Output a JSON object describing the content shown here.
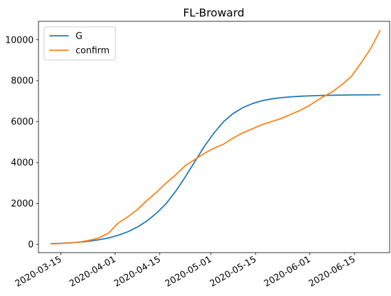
{
  "chart_data": {
    "type": "line",
    "title": "FL-Broward",
    "xlabel": "",
    "ylabel": "",
    "x_axis_type": "date",
    "xlim": [
      "2020-03-08",
      "2020-06-26"
    ],
    "ylim": [
      -400,
      10900
    ],
    "xticks": [
      "2020-03-15",
      "2020-04-01",
      "2020-04-15",
      "2020-05-01",
      "2020-05-15",
      "2020-06-01",
      "2020-06-15"
    ],
    "yticks": [
      0,
      2000,
      4000,
      6000,
      8000,
      10000
    ],
    "grid": false,
    "legend_position": "upper-left",
    "series": [
      {
        "name": "G",
        "color": "#1f77b4",
        "points": [
          [
            "2020-03-12",
            40
          ],
          [
            "2020-03-15",
            55
          ],
          [
            "2020-03-18",
            80
          ],
          [
            "2020-03-21",
            115
          ],
          [
            "2020-03-24",
            160
          ],
          [
            "2020-03-27",
            230
          ],
          [
            "2020-03-30",
            320
          ],
          [
            "2020-04-02",
            450
          ],
          [
            "2020-04-05",
            620
          ],
          [
            "2020-04-08",
            850
          ],
          [
            "2020-04-11",
            1150
          ],
          [
            "2020-04-14",
            1530
          ],
          [
            "2020-04-17",
            2000
          ],
          [
            "2020-04-20",
            2600
          ],
          [
            "2020-04-23",
            3300
          ],
          [
            "2020-04-26",
            4050
          ],
          [
            "2020-04-29",
            4800
          ],
          [
            "2020-05-02",
            5450
          ],
          [
            "2020-05-05",
            6000
          ],
          [
            "2020-05-08",
            6400
          ],
          [
            "2020-05-11",
            6680
          ],
          [
            "2020-05-14",
            6880
          ],
          [
            "2020-05-17",
            7020
          ],
          [
            "2020-05-20",
            7110
          ],
          [
            "2020-05-23",
            7170
          ],
          [
            "2020-05-26",
            7210
          ],
          [
            "2020-05-29",
            7240
          ],
          [
            "2020-06-01",
            7260
          ],
          [
            "2020-06-05",
            7280
          ],
          [
            "2020-06-10",
            7295
          ],
          [
            "2020-06-15",
            7305
          ],
          [
            "2020-06-20",
            7310
          ],
          [
            "2020-06-23",
            7315
          ]
        ]
      },
      {
        "name": "confirm",
        "color": "#ff7f0e",
        "points": [
          [
            "2020-03-12",
            30
          ],
          [
            "2020-03-15",
            45
          ],
          [
            "2020-03-18",
            70
          ],
          [
            "2020-03-21",
            120
          ],
          [
            "2020-03-24",
            200
          ],
          [
            "2020-03-27",
            320
          ],
          [
            "2020-03-30",
            560
          ],
          [
            "2020-04-02",
            1050
          ],
          [
            "2020-04-05",
            1350
          ],
          [
            "2020-04-08",
            1700
          ],
          [
            "2020-04-11",
            2150
          ],
          [
            "2020-04-14",
            2550
          ],
          [
            "2020-04-17",
            3000
          ],
          [
            "2020-04-20",
            3400
          ],
          [
            "2020-04-23",
            3850
          ],
          [
            "2020-04-26",
            4150
          ],
          [
            "2020-04-29",
            4450
          ],
          [
            "2020-05-02",
            4700
          ],
          [
            "2020-05-05",
            4900
          ],
          [
            "2020-05-08",
            5200
          ],
          [
            "2020-05-11",
            5450
          ],
          [
            "2020-05-14",
            5650
          ],
          [
            "2020-05-17",
            5850
          ],
          [
            "2020-05-20",
            6000
          ],
          [
            "2020-05-23",
            6150
          ],
          [
            "2020-05-26",
            6350
          ],
          [
            "2020-05-29",
            6550
          ],
          [
            "2020-06-01",
            6800
          ],
          [
            "2020-06-05",
            7200
          ],
          [
            "2020-06-08",
            7450
          ],
          [
            "2020-06-11",
            7800
          ],
          [
            "2020-06-14",
            8200
          ],
          [
            "2020-06-17",
            8850
          ],
          [
            "2020-06-20",
            9550
          ],
          [
            "2020-06-23",
            10450
          ]
        ]
      }
    ]
  }
}
